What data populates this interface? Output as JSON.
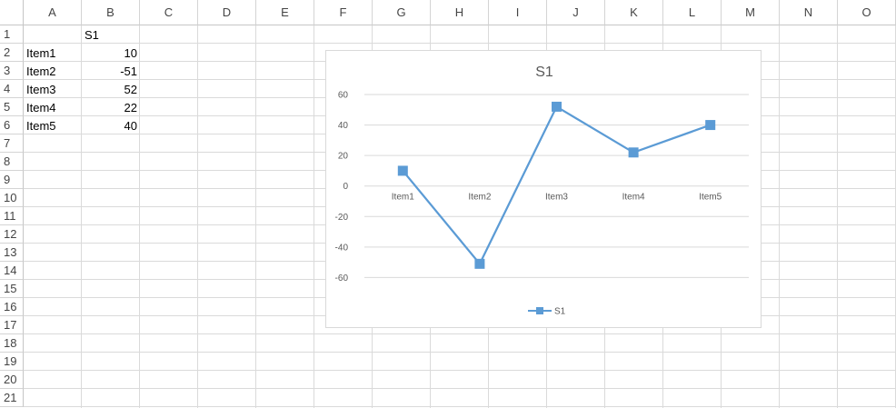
{
  "columns": [
    "A",
    "B",
    "C",
    "D",
    "E",
    "F",
    "G",
    "H",
    "I",
    "J",
    "K",
    "L",
    "M",
    "N",
    "O"
  ],
  "rows": [
    "1",
    "2",
    "3",
    "4",
    "5",
    "6",
    "7",
    "8",
    "9",
    "10",
    "11",
    "12",
    "13",
    "14",
    "15",
    "16",
    "17",
    "18",
    "19",
    "20",
    "21"
  ],
  "cells": {
    "B1": "S1",
    "A2": "Item1",
    "B2": "10",
    "A3": "Item2",
    "B3": "-51",
    "A4": "Item3",
    "B4": "52",
    "A5": "Item4",
    "B5": "22",
    "A6": "Item5",
    "B6": "40"
  },
  "colors": {
    "series": "#5b9bd5",
    "grid": "#d9d9d9",
    "text": "#595959"
  },
  "chart_data": {
    "type": "line",
    "title": "S1",
    "categories": [
      "Item1",
      "Item2",
      "Item3",
      "Item4",
      "Item5"
    ],
    "series": [
      {
        "name": "S1",
        "values": [
          10,
          -51,
          52,
          22,
          40
        ]
      }
    ],
    "ylim": [
      -80,
      60
    ],
    "yticks": [
      60,
      40,
      20,
      0,
      -20,
      -40,
      -60
    ],
    "grid": true,
    "legend": "bottom",
    "marker": "square"
  }
}
